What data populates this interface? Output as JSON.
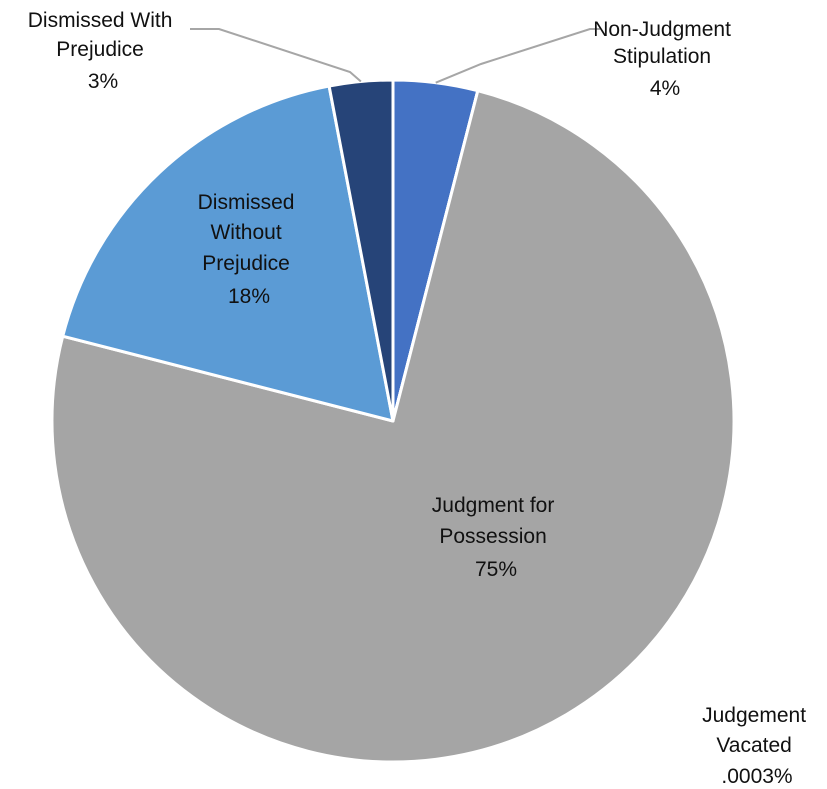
{
  "chart_data": {
    "type": "pie",
    "title": "",
    "slices": [
      {
        "name": "Non-Judgment Stipulation",
        "value": 4,
        "value_label": "4%",
        "color": "#4472C4",
        "label_lines": [
          "Non-Judgment",
          "Stipulation"
        ]
      },
      {
        "name": "Judgement Vacated",
        "value": 0.0003,
        "value_label": ".0003%",
        "color": "#7F7F7F",
        "label_lines": [
          "Judgement",
          "Vacated"
        ]
      },
      {
        "name": "Judgment for Possession",
        "value": 75,
        "value_label": "75%",
        "color": "#A5A5A5",
        "label_lines": [
          "Judgment for",
          "Possession"
        ]
      },
      {
        "name": "Dismissed Without Prejudice",
        "value": 18,
        "value_label": "18%",
        "color": "#5B9BD5",
        "label_lines": [
          "Dismissed",
          "Without",
          "Prejudice"
        ]
      },
      {
        "name": "Dismissed With Prejudice",
        "value": 3,
        "value_label": "3%",
        "color": "#264478",
        "label_lines": [
          "Dismissed With",
          "Prejudice"
        ]
      }
    ],
    "start_angle": "12 o'clock",
    "direction": "clockwise",
    "slice_border_color": "#FFFFFF",
    "leader_line_color": "#A6A6A6"
  }
}
